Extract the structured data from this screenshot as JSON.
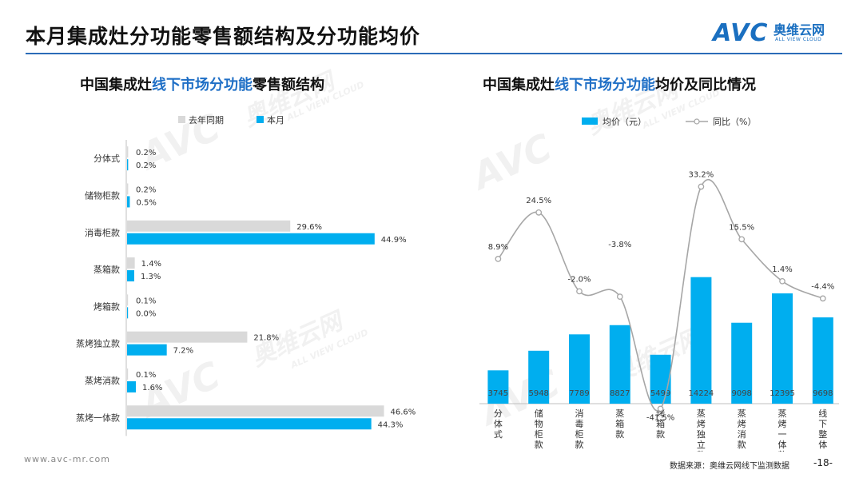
{
  "page": {
    "title": "本月集成灶分功能零售额结构及分功能均价",
    "logo": {
      "mark": "AVC",
      "name_cn": "奥维云网",
      "name_en": "ALL VIEW CLOUD"
    },
    "footer": {
      "url": "www.avc-mr.com",
      "source": "数据来源：奥维云网线下监测数据",
      "page_number": "-18-"
    },
    "watermark": {
      "mark": "AVC",
      "name_cn": "奥维云网",
      "name_en": "ALL VIEW CLOUD"
    },
    "colors": {
      "accent": "#00aeef",
      "gray_bar": "#d9d9d9",
      "title_line": "#2b6cb8",
      "highlight_text": "#1f6fc6",
      "line": "#a6a6a6"
    }
  },
  "left_subtitle": {
    "part1": "中国集成灶",
    "highlight": "线下市场分功能",
    "part2": "零售额结构"
  },
  "right_subtitle": {
    "part1": "中国集成灶",
    "highlight": "线下市场分功能",
    "part2": "均价及同比情况"
  },
  "chart_data": [
    {
      "type": "bar",
      "orientation": "horizontal",
      "categories": [
        "分体式",
        "储物柜款",
        "消毒柜款",
        "蒸箱款",
        "烤箱款",
        "蒸烤独立款",
        "蒸烤消款",
        "蒸烤一体款"
      ],
      "series": [
        {
          "name": "去年同期",
          "values": [
            0.2,
            0.2,
            29.6,
            1.4,
            0.1,
            21.8,
            0.1,
            46.6
          ],
          "labels": [
            "0.2%",
            "0.2%",
            "29.6%",
            "1.4%",
            "0.1%",
            "21.8%",
            "0.1%",
            "46.6%"
          ]
        },
        {
          "name": "本月",
          "values": [
            0.2,
            0.5,
            44.9,
            1.3,
            0.0,
            7.2,
            1.6,
            44.3
          ],
          "labels": [
            "0.2%",
            "0.5%",
            "44.9%",
            "1.3%",
            "0.0%",
            "7.2%",
            "1.6%",
            "44.3%"
          ]
        }
      ],
      "legend_position": "top",
      "unit": "%",
      "xlim": [
        0,
        50
      ]
    },
    {
      "type": "bar+line",
      "categories": [
        "分体式",
        "储物柜款",
        "消毒柜款",
        "蒸箱款",
        "烤箱款",
        "蒸烤独立款",
        "蒸烤消款",
        "蒸烤一体款",
        "线下整体"
      ],
      "bar_series": {
        "name": "均价（元）",
        "values": [
          3745,
          5948,
          7789,
          8827,
          5499,
          14224,
          9098,
          12395,
          9698
        ]
      },
      "line_series": {
        "name": "同比（%）",
        "values": [
          8.9,
          24.5,
          -2.0,
          -3.8,
          -41.5,
          33.2,
          15.5,
          1.4,
          -4.4
        ],
        "labels": [
          "8.9%",
          "24.5%",
          "-2.0%",
          "-3.8%",
          "-41.5%",
          "33.2%",
          "15.5%",
          "1.4%",
          "-4.4%"
        ]
      },
      "legend_position": "top",
      "bar_ylim": [
        0,
        16000
      ],
      "line_ylim": [
        -50,
        40
      ]
    }
  ]
}
